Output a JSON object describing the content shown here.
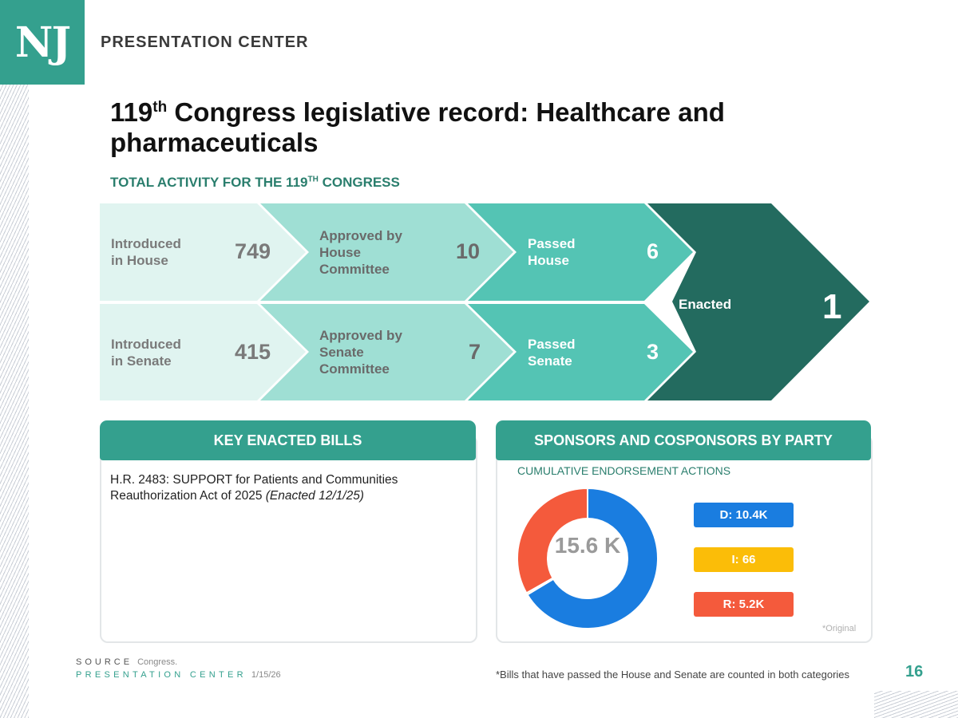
{
  "brand": {
    "logo": "NJ",
    "name": "PRESENTATION CENTER"
  },
  "title": {
    "pre": "119",
    "sup": "th",
    "post": " Congress legislative record: Healthcare and pharmaceuticals"
  },
  "subhead": {
    "pre": "TOTAL ACTIVITY FOR THE 119",
    "sup": "TH",
    "post": " CONGRESS"
  },
  "funnel": {
    "intro_house": {
      "label_1": "Introduced",
      "label_2": "in House",
      "value": "749"
    },
    "intro_senate": {
      "label_1": "Introduced",
      "label_2": "in Senate",
      "value": "415"
    },
    "cmte_house": {
      "label_1": "Approved by",
      "label_2": "House",
      "label_3": "Committee",
      "value": "10"
    },
    "cmte_senate": {
      "label_1": "Approved by",
      "label_2": "Senate",
      "label_3": "Committee",
      "value": "7"
    },
    "passed_house": {
      "label_1": "Passed",
      "label_2": "House",
      "value": "6"
    },
    "passed_senate": {
      "label_1": "Passed",
      "label_2": "Senate",
      "value": "3"
    },
    "enacted": {
      "label": "Enacted",
      "value": "1"
    },
    "colors": {
      "stage1": "#e0f4f0",
      "stage2": "#9fdfd4",
      "stage3": "#54c4b4",
      "stage4": "#236b5f"
    }
  },
  "key_bills": {
    "header": "KEY ENACTED BILLS",
    "bill_text": "H.R. 2483: SUPPORT for Patients and Communities Reauthorization Act of 2025 ",
    "bill_date": "(Enacted 12/1/25)"
  },
  "party": {
    "header": "SPONSORS AND COSPONSORS BY PARTY",
    "subtitle": "CUMULATIVE ENDORSEMENT ACTIONS",
    "footnote_original": "*Original"
  },
  "chart_data": {
    "type": "pie",
    "title": "SPONSORS AND COSPONSORS BY PARTY",
    "subtitle": "CUMULATIVE ENDORSEMENT ACTIONS",
    "center_label": "15.6 K",
    "slices": [
      {
        "name": "D",
        "label": "D: 10.4K",
        "value": 10400,
        "color": "#1a7de0"
      },
      {
        "name": "I",
        "label": "I: 66",
        "value": 66,
        "color": "#fbbd08"
      },
      {
        "name": "R",
        "label": "R: 5.2K",
        "value": 5200,
        "color": "#f45a3c"
      }
    ]
  },
  "footer": {
    "source_key": "SOURCE",
    "source_val": "Congress.",
    "pc_key": "PRESENTATION CENTER",
    "pc_date": "1/15/26",
    "note": "*Bills that have passed the House and Senate are counted in both categories",
    "page": "16"
  }
}
